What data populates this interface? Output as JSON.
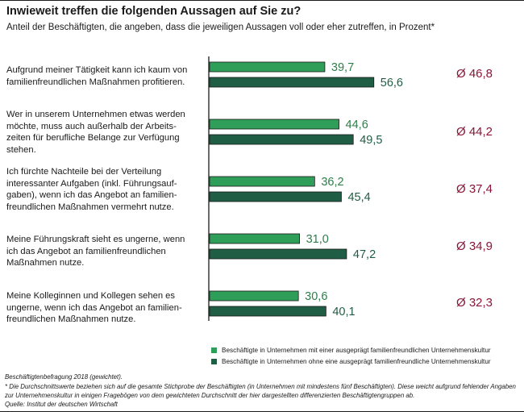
{
  "header": {
    "title": "Inwieweit treffen die folgenden Aussagen auf Sie zu?",
    "subtitle": "Anteil der Beschäftigten, die angeben, dass die jeweiligen Aussagen voll oder eher zutreffen, in Prozent*"
  },
  "chart_data": {
    "type": "bar",
    "orientation": "horizontal",
    "categories": [
      "Aufgrund meiner Tätigkeit kann ich kaum von familienfreundlichen Maßnahmen profitieren.",
      "Wer in unserem Unternehmen etwas werden möchte, muss auch außerhalb der Arbeits-zeiten für berufliche Belange zur Verfügung stehen.",
      "Ich fürchte Nachteile bei der Verteilung interessanter Aufgaben (inkl. Führungsauf-gaben), wenn ich das Angebot an familien-freundlichen Maßnahmen vermehrt nutze.",
      "Meine Führungskraft sieht es ungerne, wenn ich das Angebot an familienfreundlichen Maßnahmen nutze.",
      "Meine Kolleginnen und Kollegen sehen es ungerne, wenn ich das Angebot an familien-freundlichen Maßnahmen nutze."
    ],
    "series": [
      {
        "name": "Beschäftigte in Unternehmen mit einer ausgeprägt familienfreundlichen Unternehmenskultur",
        "color": "#2e9e58",
        "values": [
          39.7,
          44.6,
          36.2,
          31.0,
          30.6
        ],
        "labels": [
          "39,7",
          "44,6",
          "36,2",
          "31,0",
          "30,6"
        ]
      },
      {
        "name": "Beschäftigte in Unternehmen ohne eine ausgeprägt familienfreundliche Unternehmenskultur",
        "color": "#1f5e45",
        "values": [
          56.6,
          49.5,
          45.4,
          47.2,
          40.1
        ],
        "labels": [
          "56,6",
          "49,5",
          "45,4",
          "47,2",
          "40,1"
        ]
      }
    ],
    "averages": [
      "Ø 46,8",
      "Ø 44,2",
      "Ø 37,4",
      "Ø 34,9",
      "Ø 32,3"
    ],
    "xlim": [
      0,
      100
    ],
    "grid": false,
    "legend_position": "bottom"
  },
  "footer": {
    "line1": "Beschäftigtenbefragung 2018 (gewichtet).",
    "line2": "* Die Durchschnittswerte beziehen sich auf die gesamte Stichprobe der Beschäftigten (in Unternehmen mit mindestens fünf Beschäftigten). Diese weicht aufgrund fehlender Angaben zur Unternehmenskultur in einigen Fragebögen von dem gewichteten Durchschnitt der hier dargestellten differenzierten Beschäftigtengruppen ab.",
    "line3": "Quelle: Institut der deutschen Wirtschaft"
  }
}
